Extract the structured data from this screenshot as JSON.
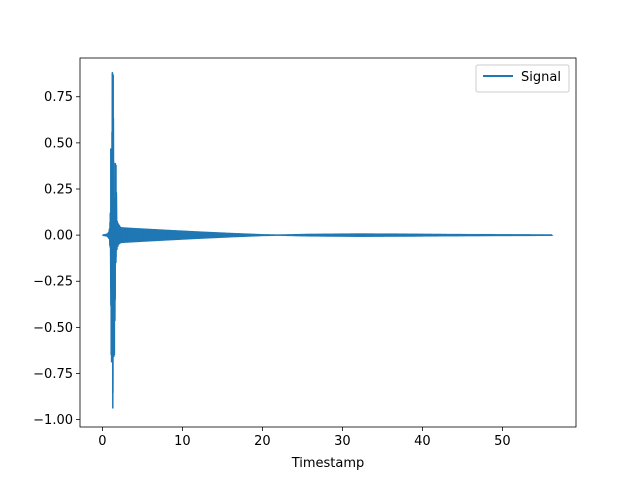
{
  "chart_data": {
    "type": "line",
    "title": "",
    "xlabel": "Timestamp",
    "ylabel": "",
    "xlim": [
      -2.8,
      59.2
    ],
    "ylim": [
      -1.04,
      0.96
    ],
    "grid": false,
    "legend_position": "top-right",
    "x_ticks": [
      {
        "value": 0,
        "label": "0"
      },
      {
        "value": 10,
        "label": "10"
      },
      {
        "value": 20,
        "label": "20"
      },
      {
        "value": 30,
        "label": "30"
      },
      {
        "value": 40,
        "label": "40"
      },
      {
        "value": 50,
        "label": "50"
      }
    ],
    "y_ticks": [
      {
        "value": 0.75,
        "label": "0.75"
      },
      {
        "value": 0.5,
        "label": "0.50"
      },
      {
        "value": 0.25,
        "label": "0.25"
      },
      {
        "value": 0.0,
        "label": "0.00"
      },
      {
        "value": -0.25,
        "label": "−0.25"
      },
      {
        "value": -0.5,
        "label": "−0.50"
      },
      {
        "value": -0.75,
        "label": "−0.75"
      },
      {
        "value": -1.0,
        "label": "−1.00"
      }
    ],
    "series": [
      {
        "name": "Signal",
        "color": "#1f77b4",
        "peaks": [
          {
            "x": 0.0,
            "pos": 0.0,
            "neg": 0.0
          },
          {
            "x": 0.6,
            "pos": 0.005,
            "neg": -0.005
          },
          {
            "x": 0.85,
            "pos": 0.02,
            "neg": -0.02
          },
          {
            "x": 0.95,
            "pos": 0.07,
            "neg": -0.06
          },
          {
            "x": 1.0,
            "pos": 0.12,
            "neg": -0.07
          },
          {
            "x": 1.05,
            "pos": 0.47,
            "neg": -0.29
          },
          {
            "x": 1.1,
            "pos": 0.25,
            "neg": -0.65
          },
          {
            "x": 1.15,
            "pos": 0.3,
            "neg": -0.69
          },
          {
            "x": 1.2,
            "pos": 0.56,
            "neg": -0.55
          },
          {
            "x": 1.25,
            "pos": 0.88,
            "neg": -0.45
          },
          {
            "x": 1.3,
            "pos": 0.7,
            "neg": -0.94
          },
          {
            "x": 1.35,
            "pos": 0.87,
            "neg": -0.6
          },
          {
            "x": 1.4,
            "pos": 0.4,
            "neg": -0.66
          },
          {
            "x": 1.5,
            "pos": 0.2,
            "neg": -0.65
          },
          {
            "x": 1.6,
            "pos": 0.39,
            "neg": -0.35
          },
          {
            "x": 1.7,
            "pos": 0.38,
            "neg": -0.12
          },
          {
            "x": 1.8,
            "pos": 0.08,
            "neg": -0.08
          },
          {
            "x": 2.0,
            "pos": 0.06,
            "neg": -0.05
          },
          {
            "x": 2.3,
            "pos": 0.04,
            "neg": -0.04
          },
          {
            "x": 3.0,
            "pos": 0.038,
            "neg": -0.038
          },
          {
            "x": 5.0,
            "pos": 0.033,
            "neg": -0.033
          },
          {
            "x": 8.0,
            "pos": 0.026,
            "neg": -0.026
          },
          {
            "x": 12.0,
            "pos": 0.017,
            "neg": -0.017
          },
          {
            "x": 16.0,
            "pos": 0.009,
            "neg": -0.009
          },
          {
            "x": 20.0,
            "pos": 0.002,
            "neg": -0.002
          },
          {
            "x": 22.0,
            "pos": 0.0005,
            "neg": -0.0005
          },
          {
            "x": 26.0,
            "pos": 0.004,
            "neg": -0.004
          },
          {
            "x": 32.0,
            "pos": 0.006,
            "neg": -0.006
          },
          {
            "x": 38.0,
            "pos": 0.005,
            "neg": -0.005
          },
          {
            "x": 44.0,
            "pos": 0.003,
            "neg": -0.003
          },
          {
            "x": 50.0,
            "pos": 0.002,
            "neg": -0.002
          },
          {
            "x": 56.3,
            "pos": 0.001,
            "neg": -0.001
          }
        ]
      }
    ]
  }
}
